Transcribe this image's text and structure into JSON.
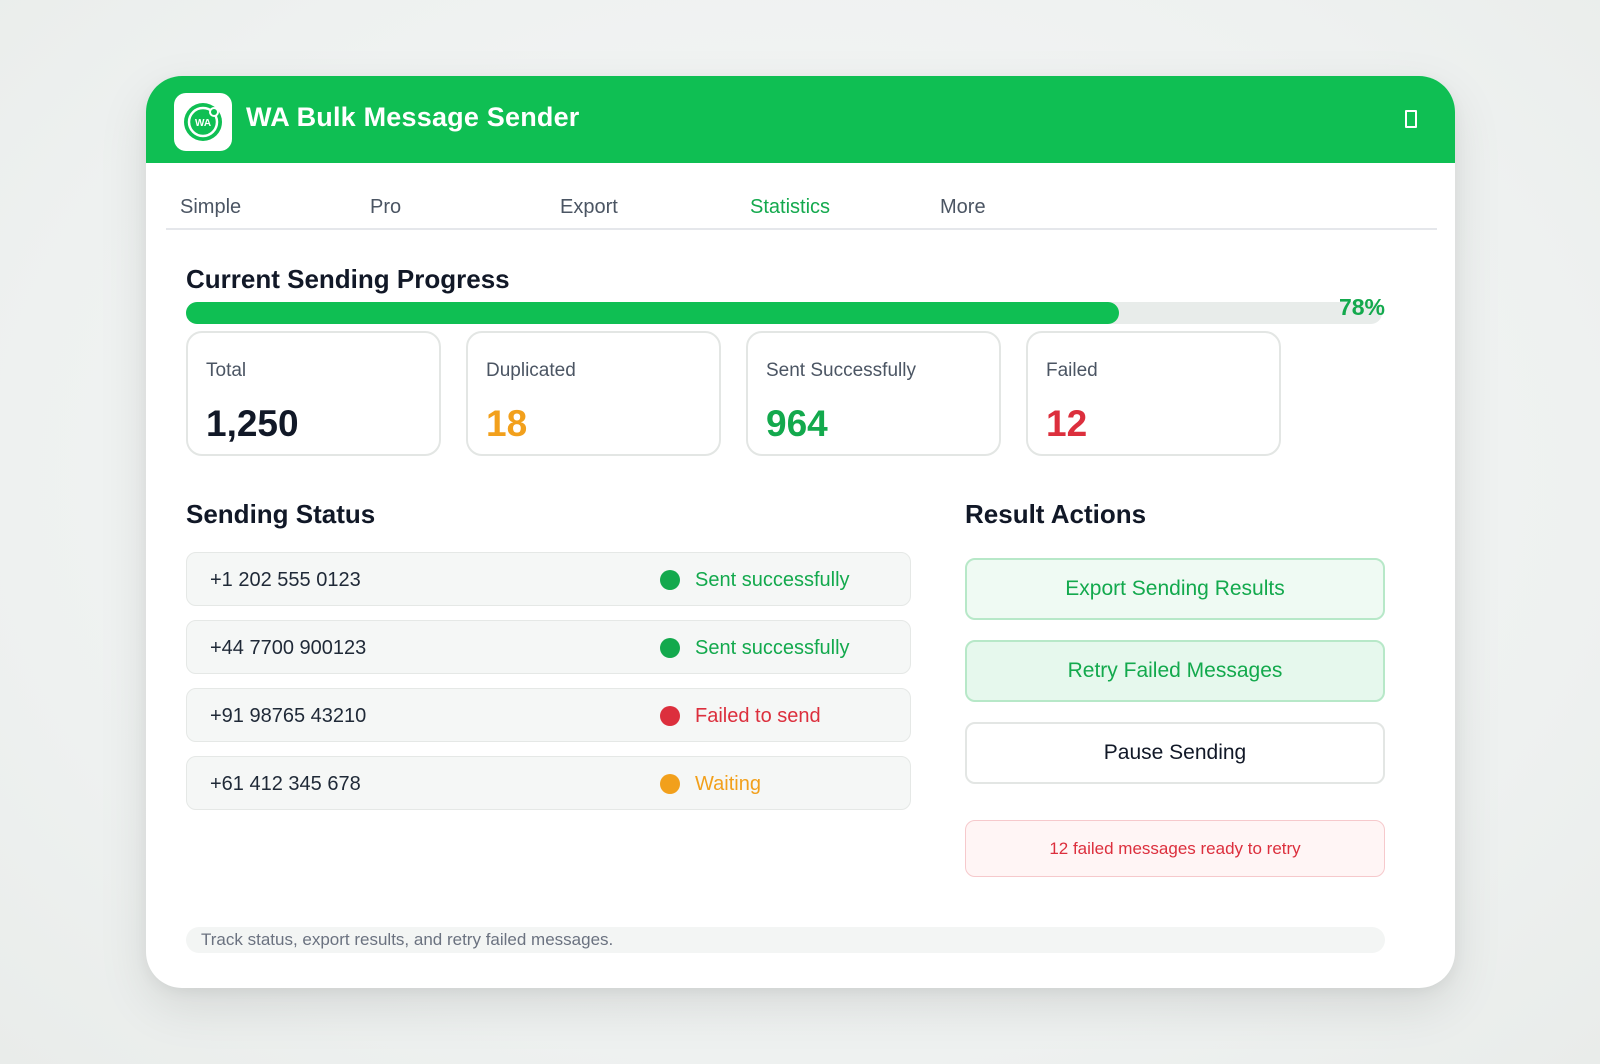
{
  "app": {
    "title": "WA Bulk Message Sender",
    "logo_text": "WA"
  },
  "tabs": [
    {
      "label": "Simple",
      "active": false
    },
    {
      "label": "Pro",
      "active": false
    },
    {
      "label": "Export",
      "active": false
    },
    {
      "label": "Statistics",
      "active": true
    },
    {
      "label": "More",
      "active": false
    }
  ],
  "progress": {
    "title": "Current Sending Progress",
    "percent_label": "78%",
    "value": 0.78
  },
  "stats": [
    {
      "label": "Total",
      "value": "1,250",
      "color": "#111827"
    },
    {
      "label": "Duplicated",
      "value": "18",
      "color": "#f2a01c"
    },
    {
      "label": "Sent Successfully",
      "value": "964",
      "color": "#13a94d"
    },
    {
      "label": "Failed",
      "value": "12",
      "color": "#dc2f3d"
    }
  ],
  "sending_status": {
    "title": "Sending Status",
    "rows": [
      {
        "phone": "+1 202 555 0123",
        "status": "Sent successfully",
        "color": "#13a94d"
      },
      {
        "phone": "+44 7700 900123",
        "status": "Sent successfully",
        "color": "#13a94d"
      },
      {
        "phone": "+91 98765 43210",
        "status": "Failed to send",
        "color": "#dc2f3d"
      },
      {
        "phone": "+61 412 345 678",
        "status": "Waiting",
        "color": "#f2a01c"
      }
    ]
  },
  "result_actions": {
    "title": "Result Actions",
    "export_label": "Export Sending Results",
    "retry_label": "Retry Failed Messages",
    "pause_label": "Pause Sending",
    "note": "12 failed messages ready to retry"
  },
  "footer": {
    "text": "Track status, export results, and retry failed messages."
  },
  "colors": {
    "brand": "#0fbf53",
    "success": "#13a94d",
    "danger": "#dc2f3d",
    "warning": "#f2a01c"
  }
}
